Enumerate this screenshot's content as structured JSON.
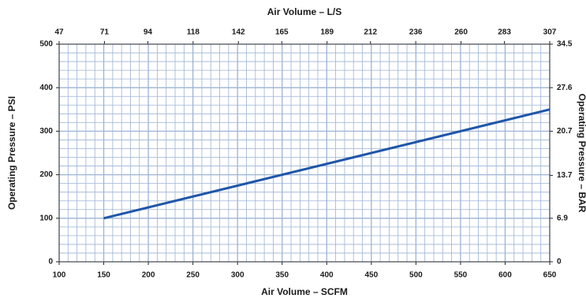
{
  "chart_data": {
    "type": "line",
    "x_label": "Air Volume – SCFM",
    "y_label": "Operating Pressure – PSI",
    "x2_label": "Air Volume – L/S",
    "y2_label": "Operating Pressure – BAR",
    "x": [
      150,
      650
    ],
    "series": [
      {
        "color": "#1f56a8",
        "values": [
          100,
          350
        ]
      }
    ],
    "xlim": [
      100,
      650
    ],
    "xticks": [
      100,
      150,
      200,
      250,
      300,
      350,
      400,
      450,
      500,
      550,
      600,
      650
    ],
    "x2lim": [
      47,
      307
    ],
    "x2ticks": [
      47,
      71,
      94,
      118,
      142,
      165,
      189,
      212,
      236,
      260,
      283,
      307
    ],
    "ylim": [
      0,
      500
    ],
    "yticks": [
      0,
      100,
      200,
      300,
      400,
      500
    ],
    "y2lim": [
      0,
      34.5
    ],
    "y2ticks": [
      0,
      6.9,
      13.7,
      20.7,
      27.6,
      34.5
    ],
    "grid": true
  }
}
